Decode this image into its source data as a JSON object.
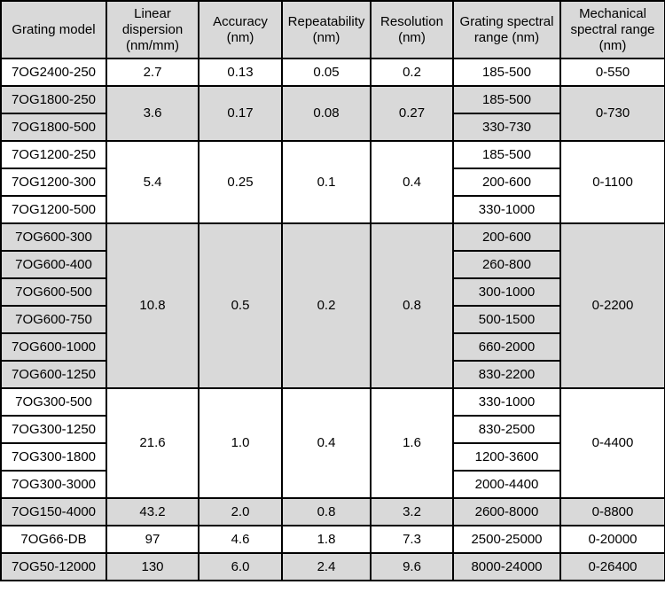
{
  "table": {
    "headers": [
      "Grating model",
      "Linear dispersion (nm/mm)",
      "Accuracy (nm)",
      "Repeatability (nm)",
      "Resolution (nm)",
      "Grating spectral range (nm)",
      "Mechanical spectral range (nm)"
    ],
    "header_lines": [
      [
        "Grating model"
      ],
      [
        "Linear",
        "dispersion",
        "(nm/mm)"
      ],
      [
        "Accuracy",
        "(nm)"
      ],
      [
        "Repeatability",
        "(nm)"
      ],
      [
        "Resolution",
        "(nm)"
      ],
      [
        "Grating spectral",
        "range (nm)"
      ],
      [
        "Mechanical",
        "spectral range",
        "(nm)"
      ]
    ],
    "groups": [
      {
        "shade": "white",
        "linear_dispersion": "2.7",
        "accuracy": "0.13",
        "repeatability": "0.05",
        "resolution": "0.2",
        "mechanical_range": "0-550",
        "models": [
          {
            "model": "7OG2400-250",
            "grating_range": "185-500"
          }
        ]
      },
      {
        "shade": "gray",
        "linear_dispersion": "3.6",
        "accuracy": "0.17",
        "repeatability": "0.08",
        "resolution": "0.27",
        "mechanical_range": "0-730",
        "models": [
          {
            "model": "7OG1800-250",
            "grating_range": "185-500"
          },
          {
            "model": "7OG1800-500",
            "grating_range": "330-730"
          }
        ]
      },
      {
        "shade": "white",
        "linear_dispersion": "5.4",
        "accuracy": "0.25",
        "repeatability": "0.1",
        "resolution": "0.4",
        "mechanical_range": "0-1100",
        "models": [
          {
            "model": "7OG1200-250",
            "grating_range": "185-500"
          },
          {
            "model": "7OG1200-300",
            "grating_range": "200-600"
          },
          {
            "model": "7OG1200-500",
            "grating_range": "330-1000"
          }
        ]
      },
      {
        "shade": "gray",
        "linear_dispersion": "10.8",
        "accuracy": "0.5",
        "repeatability": "0.2",
        "resolution": "0.8",
        "mechanical_range": "0-2200",
        "models": [
          {
            "model": "7OG600-300",
            "grating_range": "200-600"
          },
          {
            "model": "7OG600-400",
            "grating_range": "260-800"
          },
          {
            "model": "7OG600-500",
            "grating_range": "300-1000"
          },
          {
            "model": "7OG600-750",
            "grating_range": "500-1500"
          },
          {
            "model": "7OG600-1000",
            "grating_range": "660-2000"
          },
          {
            "model": "7OG600-1250",
            "grating_range": "830-2200"
          }
        ]
      },
      {
        "shade": "white",
        "linear_dispersion": "21.6",
        "accuracy": "1.0",
        "repeatability": "0.4",
        "resolution": "1.6",
        "mechanical_range": "0-4400",
        "models": [
          {
            "model": "7OG300-500",
            "grating_range": "330-1000"
          },
          {
            "model": "7OG300-1250",
            "grating_range": "830-2500"
          },
          {
            "model": "7OG300-1800",
            "grating_range": "1200-3600"
          },
          {
            "model": "7OG300-3000",
            "grating_range": "2000-4400"
          }
        ]
      },
      {
        "shade": "gray",
        "linear_dispersion": "43.2",
        "accuracy": "2.0",
        "repeatability": "0.8",
        "resolution": "3.2",
        "mechanical_range": "0-8800",
        "models": [
          {
            "model": "7OG150-4000",
            "grating_range": "2600-8000"
          }
        ]
      },
      {
        "shade": "white",
        "linear_dispersion": "97",
        "accuracy": "4.6",
        "repeatability": "1.8",
        "resolution": "7.3",
        "mechanical_range": "0-20000",
        "models": [
          {
            "model": "7OG66-DB",
            "grating_range": "2500-25000"
          }
        ]
      },
      {
        "shade": "gray",
        "linear_dispersion": "130",
        "accuracy": "6.0",
        "repeatability": "2.4",
        "resolution": "9.6",
        "mechanical_range": "0-26400",
        "models": [
          {
            "model": "7OG50-12000",
            "grating_range": "8000-24000"
          }
        ]
      }
    ]
  },
  "colors": {
    "header_bg": "#d9d9d9",
    "gray_row_bg": "#d9d9d9",
    "white_row_bg": "#ffffff",
    "border": "#000000",
    "text": "#000000"
  }
}
